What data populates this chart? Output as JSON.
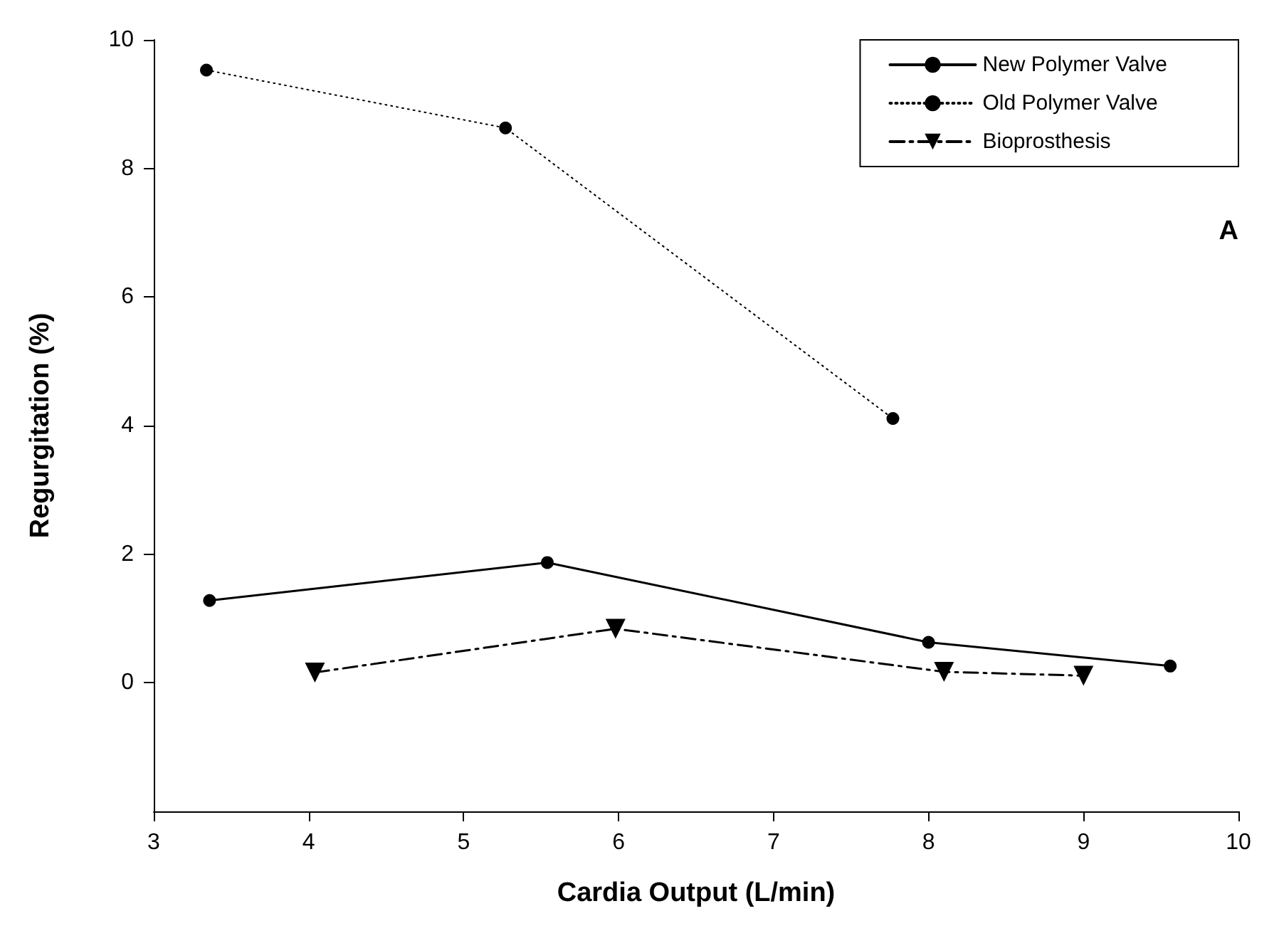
{
  "chart_data": {
    "type": "line",
    "xlabel": "Cardia Output (L/min)",
    "ylabel": "Regurgitation (%)",
    "annotations": [
      "A"
    ],
    "xlim": [
      3,
      10
    ],
    "xticks": [
      3,
      4,
      5,
      6,
      7,
      8,
      9,
      10
    ],
    "ylim": [
      -2,
      10
    ],
    "yticks": [
      0,
      2,
      4,
      6,
      8,
      10
    ],
    "grid": false,
    "legend": "top right",
    "series": [
      {
        "name": "New Polymer Valve",
        "color": "#000000",
        "x": [
          3.36,
          5.54,
          8.0,
          9.56
        ],
        "values": [
          1.28,
          1.87,
          0.63,
          0.26
        ],
        "marker": "circle",
        "line_style": "solid"
      },
      {
        "name": "Old Polymer Valve",
        "color": "#000000",
        "x": [
          3.34,
          5.27,
          7.77
        ],
        "values": [
          9.53,
          8.63,
          4.11
        ],
        "marker": "circle",
        "line_style": "dotted"
      },
      {
        "name": "Bioprosthesis",
        "color": "#000000",
        "x": [
          4.04,
          5.98,
          8.1,
          9.0
        ],
        "values": [
          0.16,
          0.84,
          0.17,
          0.11
        ],
        "marker": "triangle",
        "line_style": "dashed"
      }
    ]
  }
}
